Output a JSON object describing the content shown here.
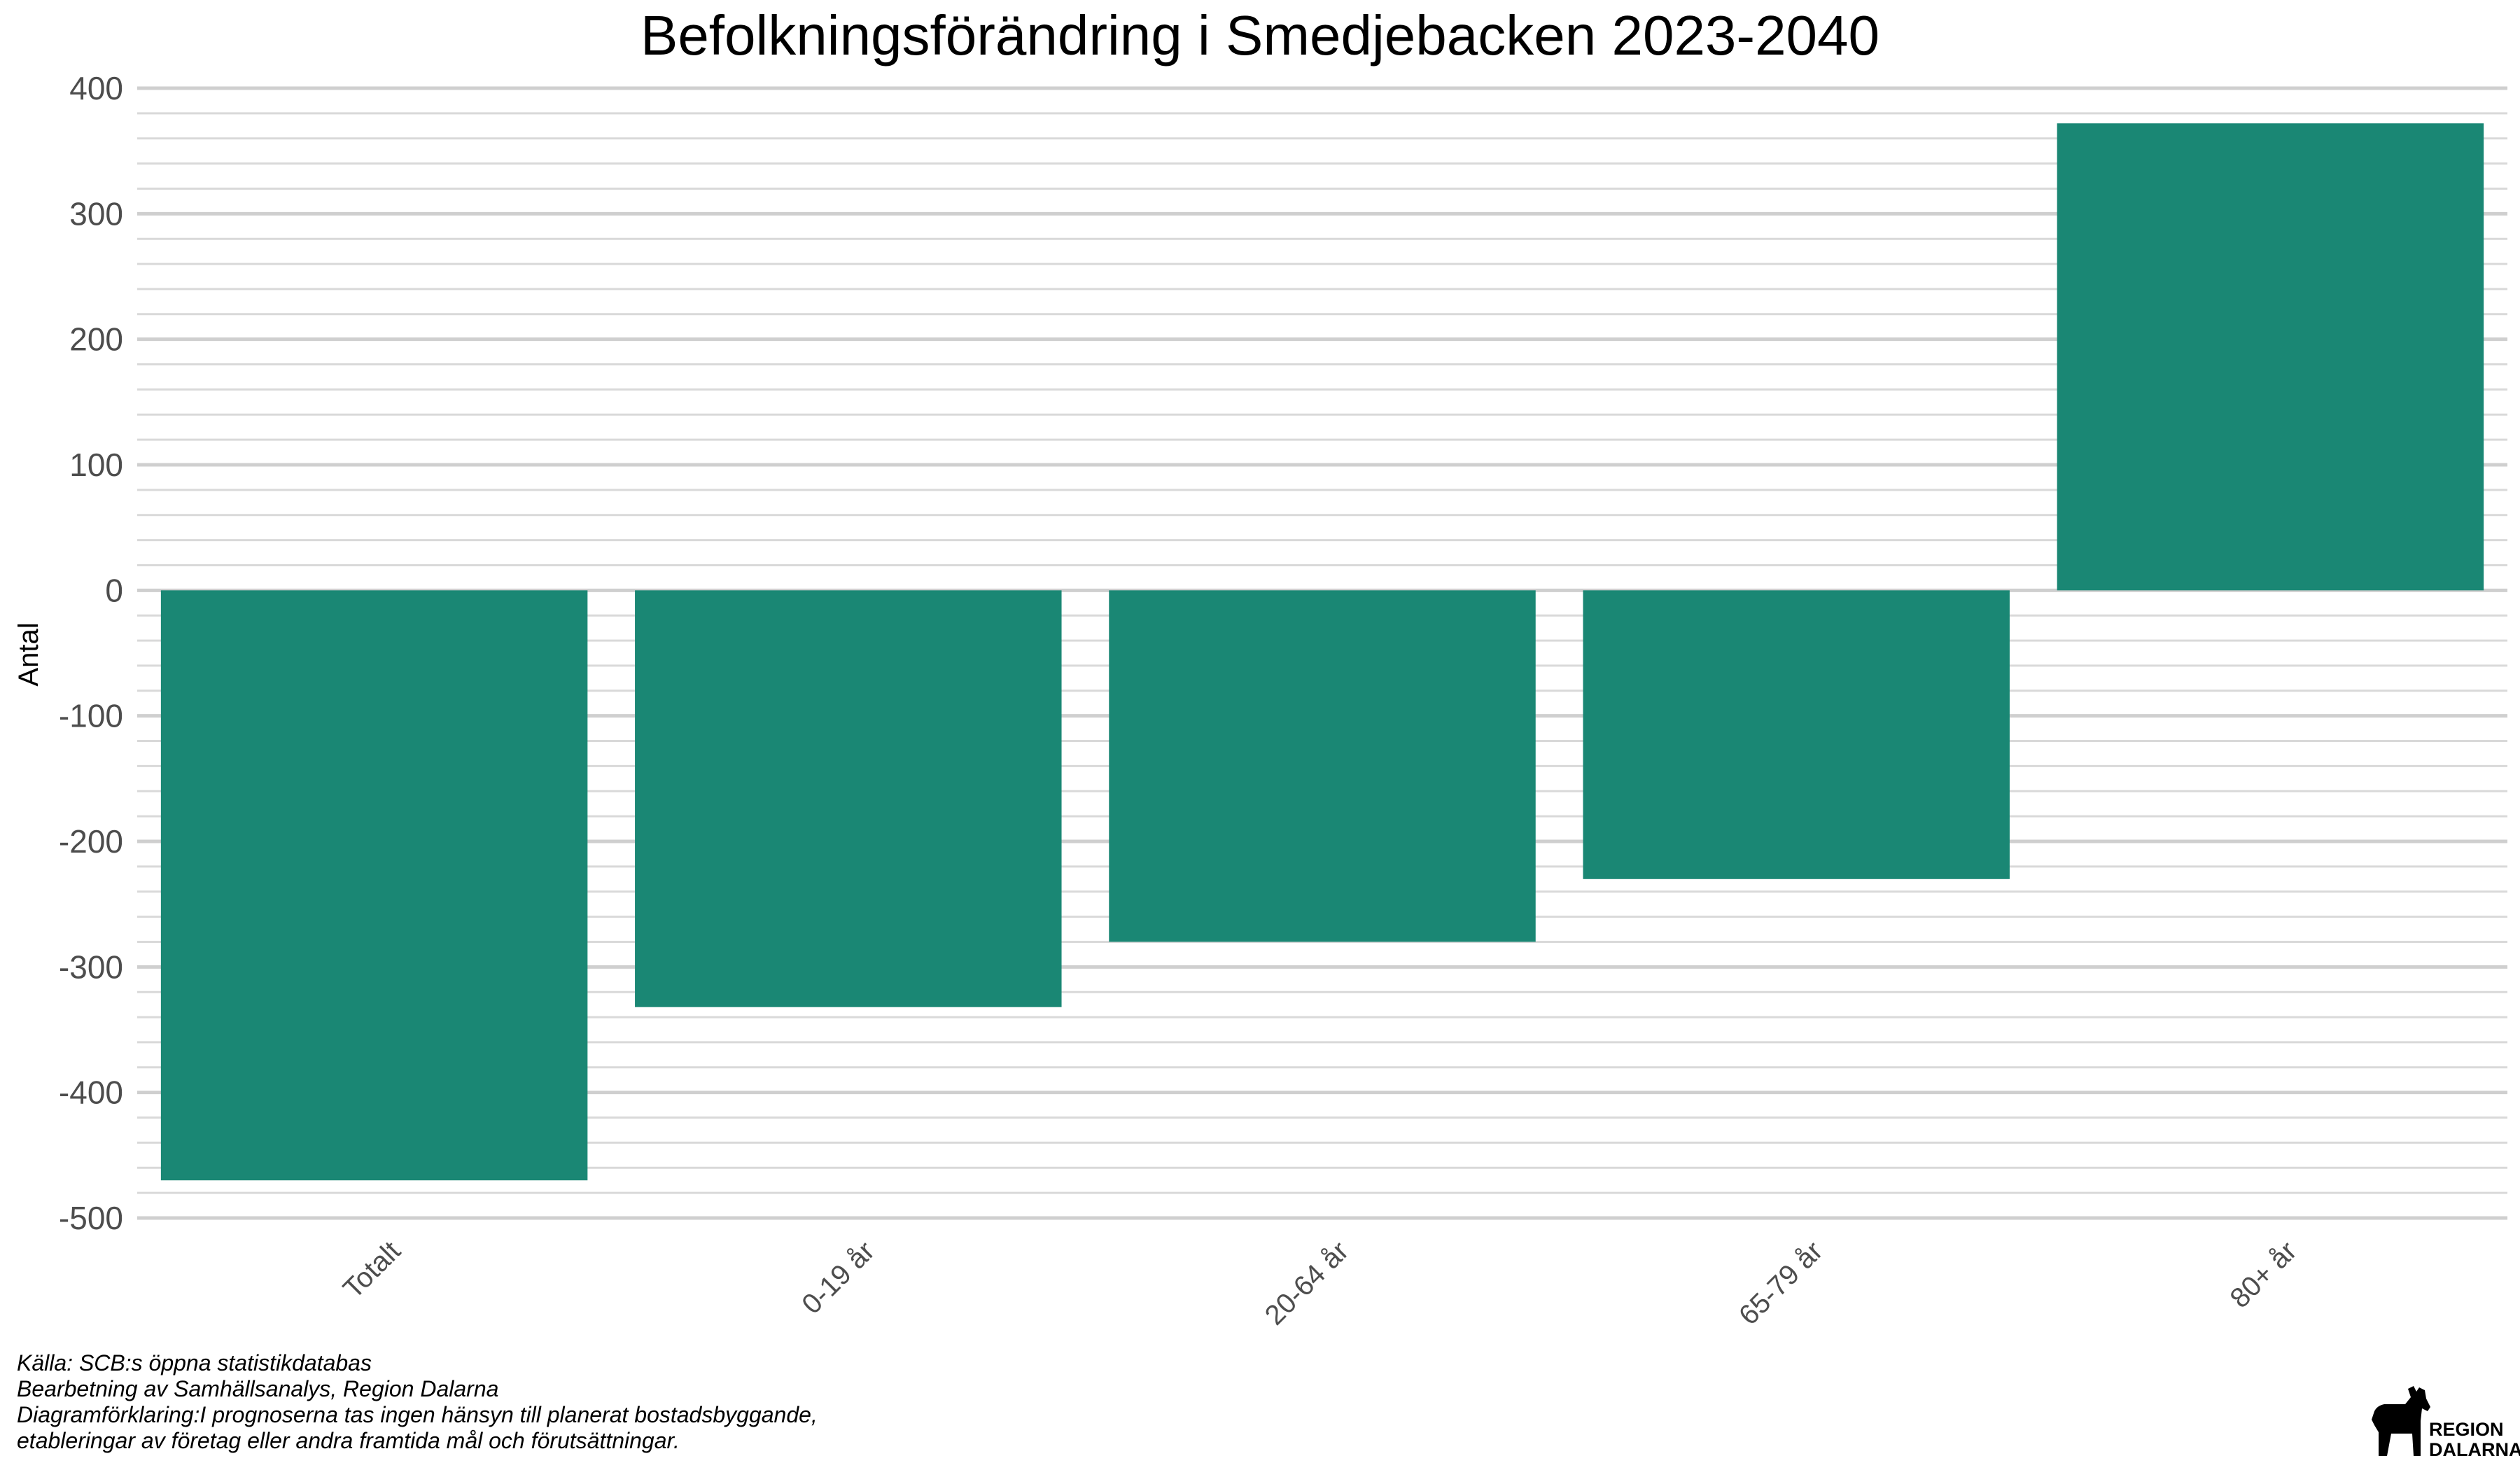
{
  "chart_data": {
    "type": "bar",
    "title": "Befolkningsförändring i Smedjebacken 2023-2040",
    "xlabel": "",
    "ylabel": "Antal",
    "categories": [
      "Totalt",
      "0-19 år",
      "20-64 år",
      "65-79 år",
      "80+ år"
    ],
    "values": [
      -470,
      -332,
      -280,
      -230,
      372
    ],
    "ylim": [
      -500,
      400
    ],
    "yticks": [
      -500,
      -400,
      -300,
      -200,
      -100,
      0,
      100,
      200,
      300,
      400
    ],
    "ytick_labels": [
      "-500",
      "-400",
      "-300",
      "-200",
      "-100",
      "0",
      "100",
      "200",
      "300",
      "400"
    ],
    "bar_color": "#1a8774",
    "grid": true,
    "legend": false
  },
  "caption": {
    "lines": [
      "Källa: SCB:s öppna statistikdatabas",
      "Bearbetning av Samhällsanalys, Region Dalarna",
      "Diagramförklaring:I prognoserna tas ingen hänsyn till planerat bostadsbyggande,",
      "etableringar av företag eller andra framtida mål och förutsättningar."
    ]
  },
  "logo": {
    "lines": [
      "REGION",
      "DALARNA"
    ],
    "icon": "dala-horse-icon"
  }
}
